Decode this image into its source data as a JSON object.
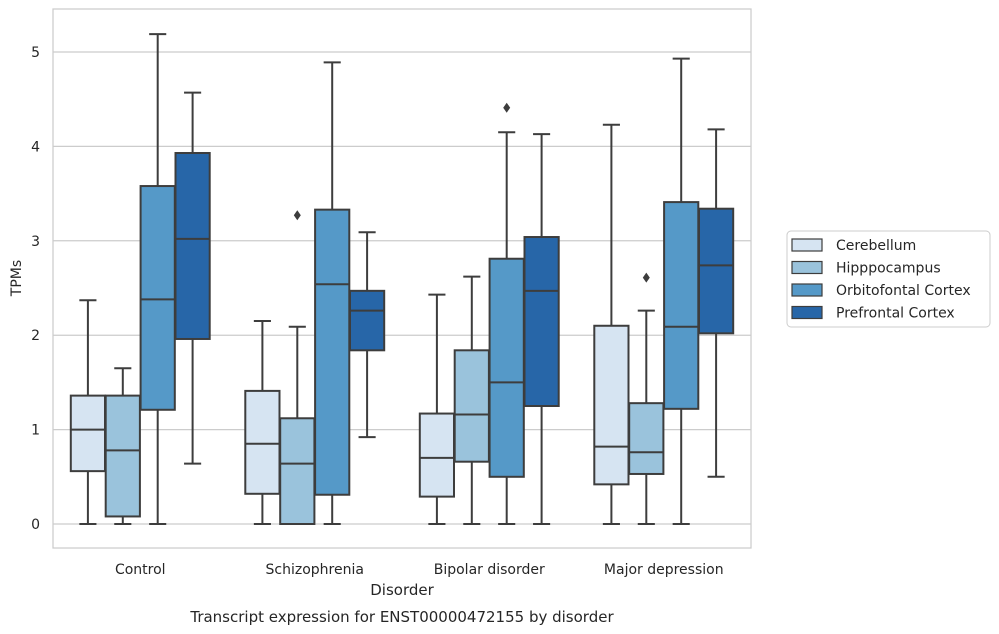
{
  "chart_data": {
    "type": "box",
    "title": "Transcript expression for ENST00000472155 by disorder",
    "xlabel": "Disorder",
    "ylabel": "TPMs",
    "ylim": [
      -0.25,
      5.45
    ],
    "yticks": [
      0,
      1,
      2,
      3,
      4,
      5
    ],
    "grid": true,
    "legend_position": "right",
    "categories": [
      "Control",
      "Schizophrenia",
      "Bipolar disorder",
      "Major depression"
    ],
    "series": [
      {
        "name": "Cerebellum",
        "color": "#d6e4f2",
        "boxes": [
          {
            "whisker_low": 0,
            "q1": 0.56,
            "median": 1.0,
            "q3": 1.36,
            "whisker_high": 2.37,
            "outliers": []
          },
          {
            "whisker_low": 0,
            "q1": 0.32,
            "median": 0.85,
            "q3": 1.41,
            "whisker_high": 2.15,
            "outliers": []
          },
          {
            "whisker_low": 0,
            "q1": 0.29,
            "median": 0.7,
            "q3": 1.17,
            "whisker_high": 2.43,
            "outliers": []
          },
          {
            "whisker_low": 0,
            "q1": 0.42,
            "median": 0.82,
            "q3": 2.1,
            "whisker_high": 4.23,
            "outliers": []
          }
        ]
      },
      {
        "name": "Hipppocampus",
        "color": "#9ac3dc",
        "boxes": [
          {
            "whisker_low": 0,
            "q1": 0.08,
            "median": 0.78,
            "q3": 1.36,
            "whisker_high": 1.65,
            "outliers": []
          },
          {
            "whisker_low": 0,
            "q1": 0,
            "median": 0.64,
            "q3": 1.12,
            "whisker_high": 2.09,
            "outliers": [
              3.27
            ]
          },
          {
            "whisker_low": 0,
            "q1": 0.66,
            "median": 1.16,
            "q3": 1.84,
            "whisker_high": 2.62,
            "outliers": []
          },
          {
            "whisker_low": 0,
            "q1": 0.53,
            "median": 0.76,
            "q3": 1.28,
            "whisker_high": 2.26,
            "outliers": [
              2.61
            ]
          }
        ]
      },
      {
        "name": "Orbitofontal Cortex",
        "color": "#5599c8",
        "boxes": [
          {
            "whisker_low": 0,
            "q1": 1.21,
            "median": 2.38,
            "q3": 3.58,
            "whisker_high": 5.19,
            "outliers": []
          },
          {
            "whisker_low": 0,
            "q1": 0.31,
            "median": 2.54,
            "q3": 3.33,
            "whisker_high": 4.89,
            "outliers": []
          },
          {
            "whisker_low": 0,
            "q1": 0.5,
            "median": 1.5,
            "q3": 2.81,
            "whisker_high": 4.15,
            "outliers": [
              4.41
            ]
          },
          {
            "whisker_low": 0,
            "q1": 1.22,
            "median": 2.09,
            "q3": 3.41,
            "whisker_high": 4.93,
            "outliers": []
          }
        ]
      },
      {
        "name": "Prefrontal Cortex",
        "color": "#2766a8",
        "boxes": [
          {
            "whisker_low": 0.64,
            "q1": 1.96,
            "median": 3.02,
            "q3": 3.93,
            "whisker_high": 4.57,
            "outliers": []
          },
          {
            "whisker_low": 0.92,
            "q1": 1.84,
            "median": 2.26,
            "q3": 2.47,
            "whisker_high": 3.09,
            "outliers": []
          },
          {
            "whisker_low": 0,
            "q1": 1.25,
            "median": 2.47,
            "q3": 3.04,
            "whisker_high": 4.13,
            "outliers": []
          },
          {
            "whisker_low": 0.5,
            "q1": 2.02,
            "median": 2.74,
            "q3": 3.34,
            "whisker_high": 4.18,
            "outliers": []
          }
        ]
      }
    ]
  }
}
